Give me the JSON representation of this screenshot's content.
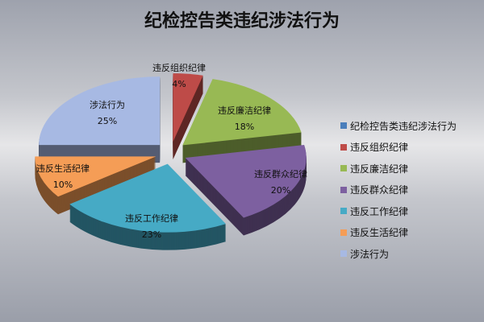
{
  "chart_data": {
    "type": "pie",
    "title": "纪检控告类违纪涉法行为",
    "style": "3d-exploded",
    "legend_position": "right",
    "categories": [
      "纪检控告类违纪涉法行为",
      "违反组织纪律",
      "违反廉洁纪律",
      "违反群众纪律",
      "违反工作纪律",
      "违反生活纪律",
      "涉法行为"
    ],
    "values": [
      0,
      4,
      18,
      20,
      23,
      10,
      25
    ],
    "data_labels": [
      "",
      "4%",
      "18%",
      "20%",
      "23%",
      "10%",
      "25%"
    ],
    "colors": [
      "#4a7ebb",
      "#be4b48",
      "#98b954",
      "#7d60a0",
      "#46aac5",
      "#f59d56",
      "#a7b9e3"
    ]
  }
}
